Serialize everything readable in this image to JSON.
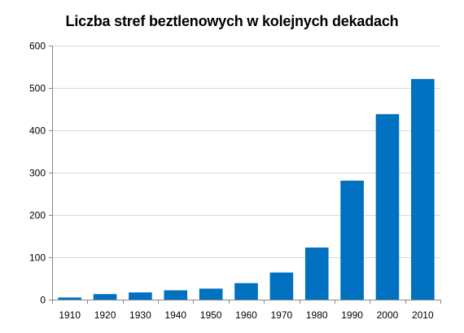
{
  "chart_data": {
    "type": "bar",
    "title": "Liczba stref beztlenowych w kolejnych  dekadach",
    "xlabel": "",
    "ylabel": "",
    "categories": [
      "1910",
      "1920",
      "1930",
      "1940",
      "1950",
      "1960",
      "1970",
      "1980",
      "1990",
      "2000",
      "2010"
    ],
    "values": [
      5,
      13,
      17,
      22,
      26,
      39,
      64,
      123,
      281,
      438,
      521
    ],
    "ylim": [
      0,
      600
    ],
    "yticks": [
      0,
      100,
      200,
      300,
      400,
      500,
      600
    ],
    "grid": true,
    "legend": "none",
    "bar_color": "#0070C0",
    "grid_color": "#D9D9D9",
    "axis_color": "#888888"
  }
}
